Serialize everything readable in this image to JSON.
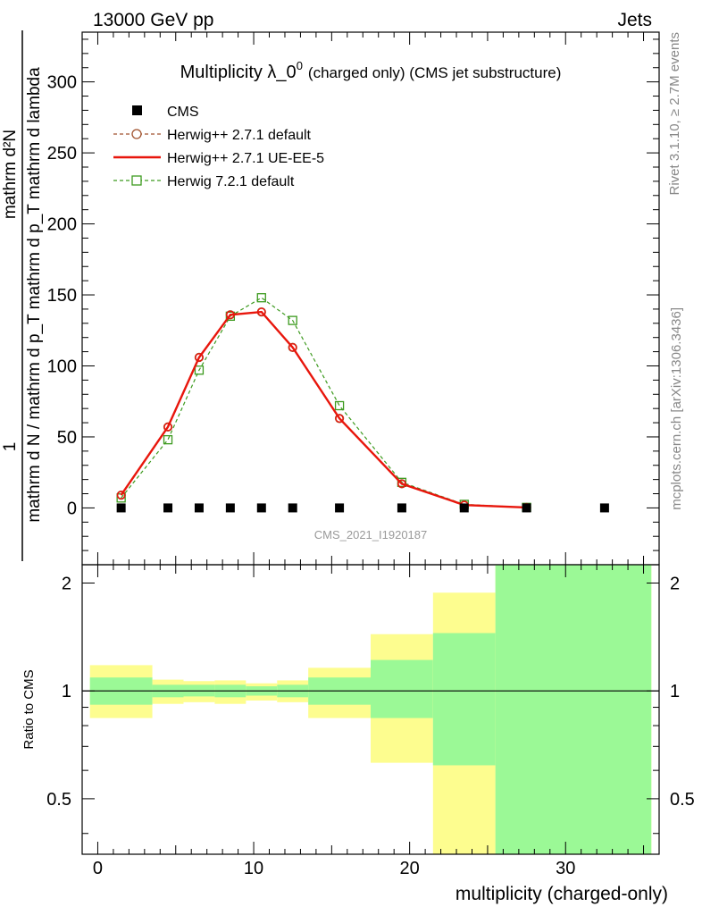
{
  "header": {
    "left": "13000 GeV pp",
    "right": "Jets"
  },
  "side": {
    "top": "Rivet 3.1.10, ≥ 2.7M events",
    "bottom": "mcplots.cern.ch [arXiv:1306.3436]"
  },
  "watermark": "CMS_2021_I1920187",
  "colors": {
    "data": "#000000",
    "herwigpp_default": "#a0522d",
    "herwigpp_ueee5": "#e8160c",
    "herwig7": "#3c9a1e",
    "band_green": "#9bf996",
    "band_yellow": "#fdfd8f"
  },
  "chart_data": [
    {
      "type": "scatter",
      "title": "Multiplicity λ_0",
      "title_sup": "0",
      "title_suffix": "(charged only) (CMS jet substructure)",
      "ylabel_numerator": "1",
      "ylabel_denominator": "mathrm d N / mathrm d p_T mathrm d p_T mathrm d lambda",
      "ylabel_right": "mathrm d²N",
      "xlim": [
        -1,
        36
      ],
      "ylim": [
        -40,
        335
      ],
      "yticks": [
        0,
        50,
        100,
        150,
        200,
        250,
        300
      ],
      "grid": false,
      "legend_position": "top-left",
      "series": [
        {
          "name": "CMS",
          "style": "square",
          "x": [
            1.5,
            4.5,
            6.5,
            8.5,
            10.5,
            12.5,
            15.5,
            19.5,
            23.5,
            27.5,
            32.5
          ],
          "y": [
            0,
            0,
            0,
            0,
            0,
            0,
            0,
            0,
            0,
            0,
            0
          ]
        },
        {
          "name": "Herwig++ 2.7.1 default",
          "style": "circle-dashed",
          "x": [
            1.5,
            4.5,
            6.5,
            8.5,
            10.5,
            12.5,
            15.5,
            19.5,
            23.5,
            27.5
          ],
          "y": [
            9,
            57,
            106,
            136,
            138,
            113,
            63,
            17,
            2,
            0.3
          ]
        },
        {
          "name": "Herwig++ 2.7.1 UE-EE-5",
          "style": "solid",
          "x": [
            1.5,
            4.5,
            6.5,
            8.5,
            10.5,
            12.5,
            15.5,
            19.5,
            23.5,
            27.5
          ],
          "y": [
            9,
            57,
            106,
            136,
            138,
            113,
            63,
            17,
            2,
            0.3
          ]
        },
        {
          "name": "Herwig 7.2.1 default",
          "style": "square-dashed",
          "x": [
            1.5,
            4.5,
            6.5,
            8.5,
            10.5,
            12.5,
            15.5,
            19.5,
            23.5,
            27.5
          ],
          "y": [
            7,
            48,
            97,
            135,
            148,
            132,
            72,
            18,
            2.5,
            0.4
          ]
        }
      ]
    },
    {
      "type": "area",
      "ylabel": "Ratio to CMS",
      "xlabel": "multiplicity (charged-only)",
      "xlim": [
        -1,
        36
      ],
      "ylim": [
        0.35,
        2.25
      ],
      "yticks": [
        0.5,
        1,
        2
      ],
      "xticks": [
        0,
        10,
        20,
        30
      ],
      "bins": [
        {
          "lo": -0.5,
          "hi": 3.5,
          "stat": [
            0.915,
            1.09
          ],
          "total": [
            0.84,
            1.18
          ]
        },
        {
          "lo": 3.5,
          "hi": 5.5,
          "stat": [
            0.96,
            1.04
          ],
          "total": [
            0.92,
            1.075
          ]
        },
        {
          "lo": 5.5,
          "hi": 7.5,
          "stat": [
            0.965,
            1.04
          ],
          "total": [
            0.93,
            1.065
          ]
        },
        {
          "lo": 7.5,
          "hi": 9.5,
          "stat": [
            0.96,
            1.04
          ],
          "total": [
            0.92,
            1.07
          ]
        },
        {
          "lo": 9.5,
          "hi": 11.5,
          "stat": [
            0.97,
            1.03
          ],
          "total": [
            0.94,
            1.05
          ]
        },
        {
          "lo": 11.5,
          "hi": 13.5,
          "stat": [
            0.96,
            1.04
          ],
          "total": [
            0.93,
            1.07
          ]
        },
        {
          "lo": 13.5,
          "hi": 17.5,
          "stat": [
            0.915,
            1.09
          ],
          "total": [
            0.84,
            1.16
          ]
        },
        {
          "lo": 17.5,
          "hi": 21.5,
          "stat": [
            0.84,
            1.22
          ],
          "total": [
            0.63,
            1.44
          ]
        },
        {
          "lo": 21.5,
          "hi": 25.5,
          "stat": [
            0.62,
            1.45
          ],
          "total": [
            0.35,
            1.88
          ]
        },
        {
          "lo": 25.5,
          "hi": 35.5,
          "stat": [
            0.35,
            2.25
          ],
          "total": [
            0.35,
            2.25
          ]
        }
      ]
    }
  ]
}
